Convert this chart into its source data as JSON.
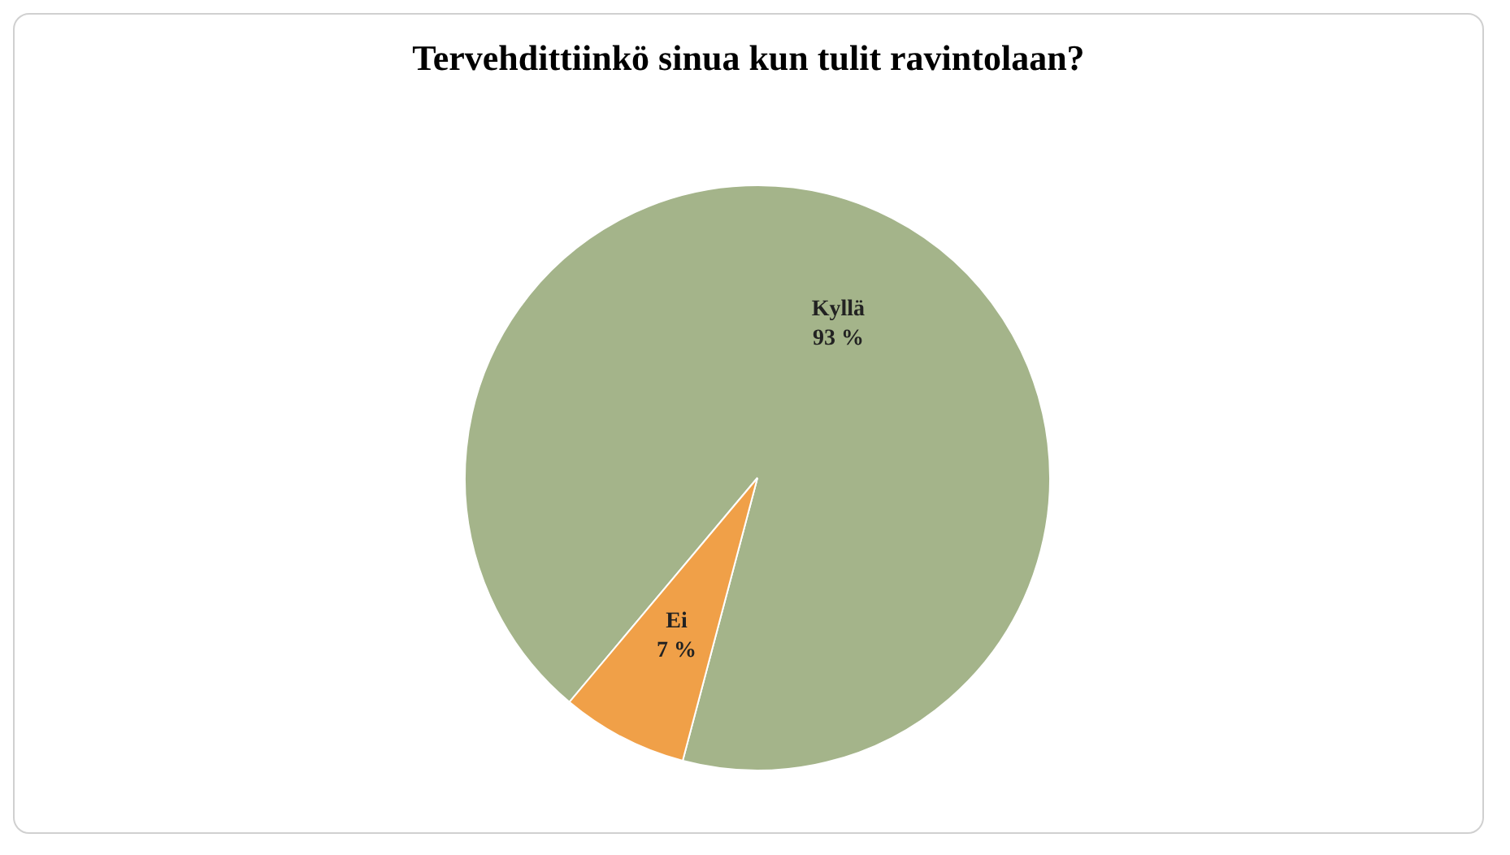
{
  "chart_data": {
    "type": "pie",
    "title": "Tervehdittiinkö sinua kun tulit ravintolaan?",
    "categories": [
      "Kyllä",
      "Ei"
    ],
    "values": [
      93,
      7
    ],
    "value_labels": [
      "93 %",
      "7 %"
    ],
    "colors": [
      "#a4b48a",
      "#f0a048"
    ]
  }
}
